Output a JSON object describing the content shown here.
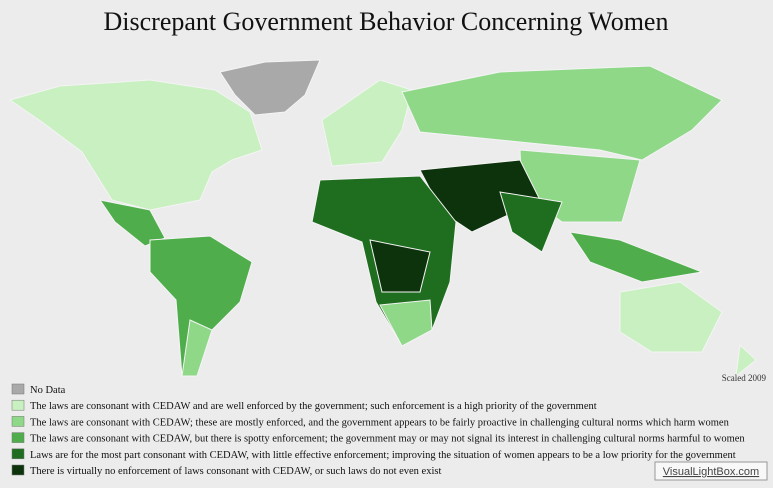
{
  "title": "Discrepant Government Behavior Concerning Women",
  "legend": [
    {
      "label": "No Data",
      "color": "#a9a9a9"
    },
    {
      "label": "The laws are consonant with CEDAW and are well enforced by the government; such enforcement is a high priority of the government",
      "color": "#c8f0c0"
    },
    {
      "label": "The laws are consonant with CEDAW; these are mostly enforced, and the government appears to be fairly proactive in challenging cultural norms which harm women",
      "color": "#8ed888"
    },
    {
      "label": "The laws are consonant with CEDAW, but there is spotty enforcement; the government may or may not signal its interest in challenging cultural norms harmful to women",
      "color": "#4fae4b"
    },
    {
      "label": "Laws are for the most part consonant with CEDAW, with little effective enforcement; improving the situation of women appears to be a low priority for the government",
      "color": "#1f6e1f"
    },
    {
      "label": "There is virtually no enforcement of laws consonant with CEDAW, or such laws do not even exist",
      "color": "#0c330c"
    }
  ],
  "note": "Scaled 2009",
  "watermark": "VisualLightBox.com"
}
